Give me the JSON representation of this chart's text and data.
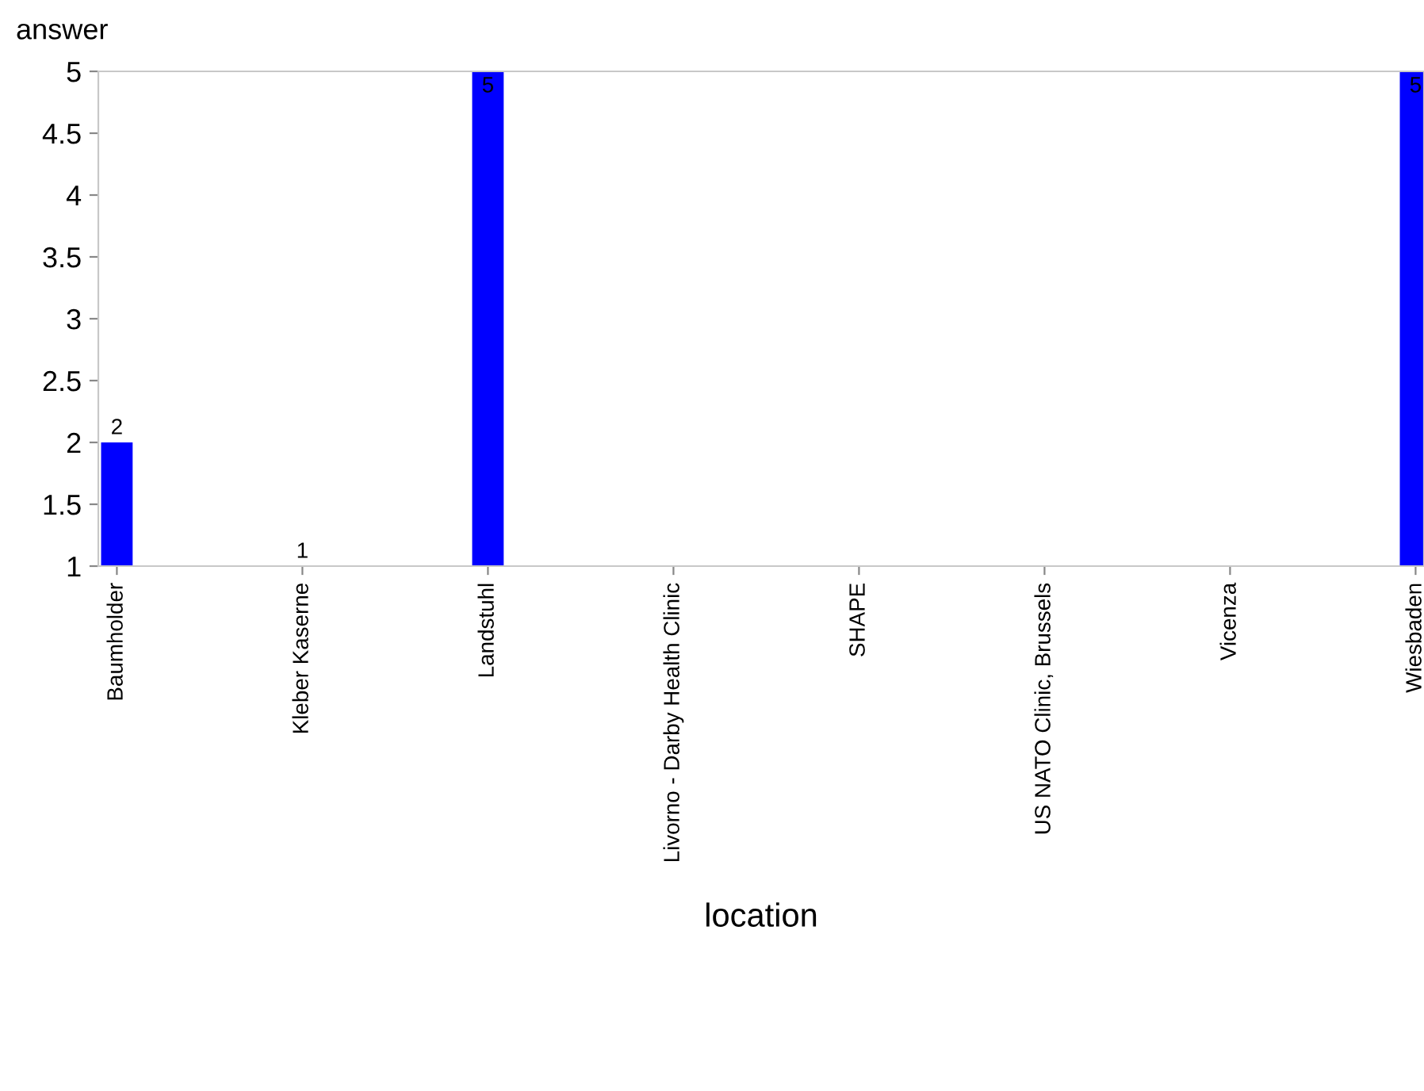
{
  "chart_data": {
    "type": "bar",
    "ylabel": "answer",
    "xlabel": "location",
    "categories": [
      "Baumholder",
      "Kleber Kaserne",
      "Landstuhl",
      "Livorno - Darby Health Clinic",
      "SHAPE",
      "US NATO Clinic, Brussels",
      "Vicenza",
      "Wiesbaden"
    ],
    "values": [
      2,
      1,
      5,
      null,
      null,
      null,
      null,
      5
    ],
    "color": "#0000ff",
    "ylim": [
      1,
      5
    ],
    "yticks": [
      1,
      1.5,
      2,
      2.5,
      3,
      3.5,
      4,
      4.5,
      5
    ],
    "grid": false,
    "data_labels": true
  }
}
